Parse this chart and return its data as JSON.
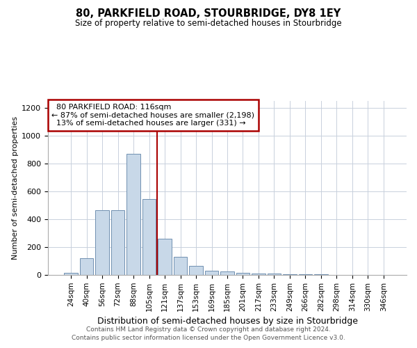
{
  "title": "80, PARKFIELD ROAD, STOURBRIDGE, DY8 1EY",
  "subtitle": "Size of property relative to semi-detached houses in Stourbridge",
  "xlabel": "Distribution of semi-detached houses by size in Stourbridge",
  "ylabel": "Number of semi-detached properties",
  "footer1": "Contains HM Land Registry data © Crown copyright and database right 2024.",
  "footer2": "Contains public sector information licensed under the Open Government Licence v3.0.",
  "categories": [
    "24sqm",
    "40sqm",
    "56sqm",
    "72sqm",
    "88sqm",
    "105sqm",
    "121sqm",
    "137sqm",
    "153sqm",
    "169sqm",
    "185sqm",
    "201sqm",
    "217sqm",
    "233sqm",
    "249sqm",
    "266sqm",
    "282sqm",
    "298sqm",
    "314sqm",
    "330sqm",
    "346sqm"
  ],
  "values": [
    15,
    120,
    465,
    465,
    870,
    545,
    260,
    130,
    65,
    30,
    25,
    15,
    10,
    10,
    5,
    5,
    5,
    0,
    0,
    0,
    0
  ],
  "bar_color": "#c8d8e8",
  "bar_edge_color": "#7090b0",
  "ylim": [
    0,
    1250
  ],
  "yticks": [
    0,
    200,
    400,
    600,
    800,
    1000,
    1200
  ],
  "property_label": "80 PARKFIELD ROAD: 116sqm",
  "pct_smaller": 87,
  "count_smaller": 2198,
  "pct_larger": 13,
  "count_larger": 331,
  "vline_color": "#aa0000",
  "background_color": "#ffffff",
  "grid_color": "#c8d0dc"
}
